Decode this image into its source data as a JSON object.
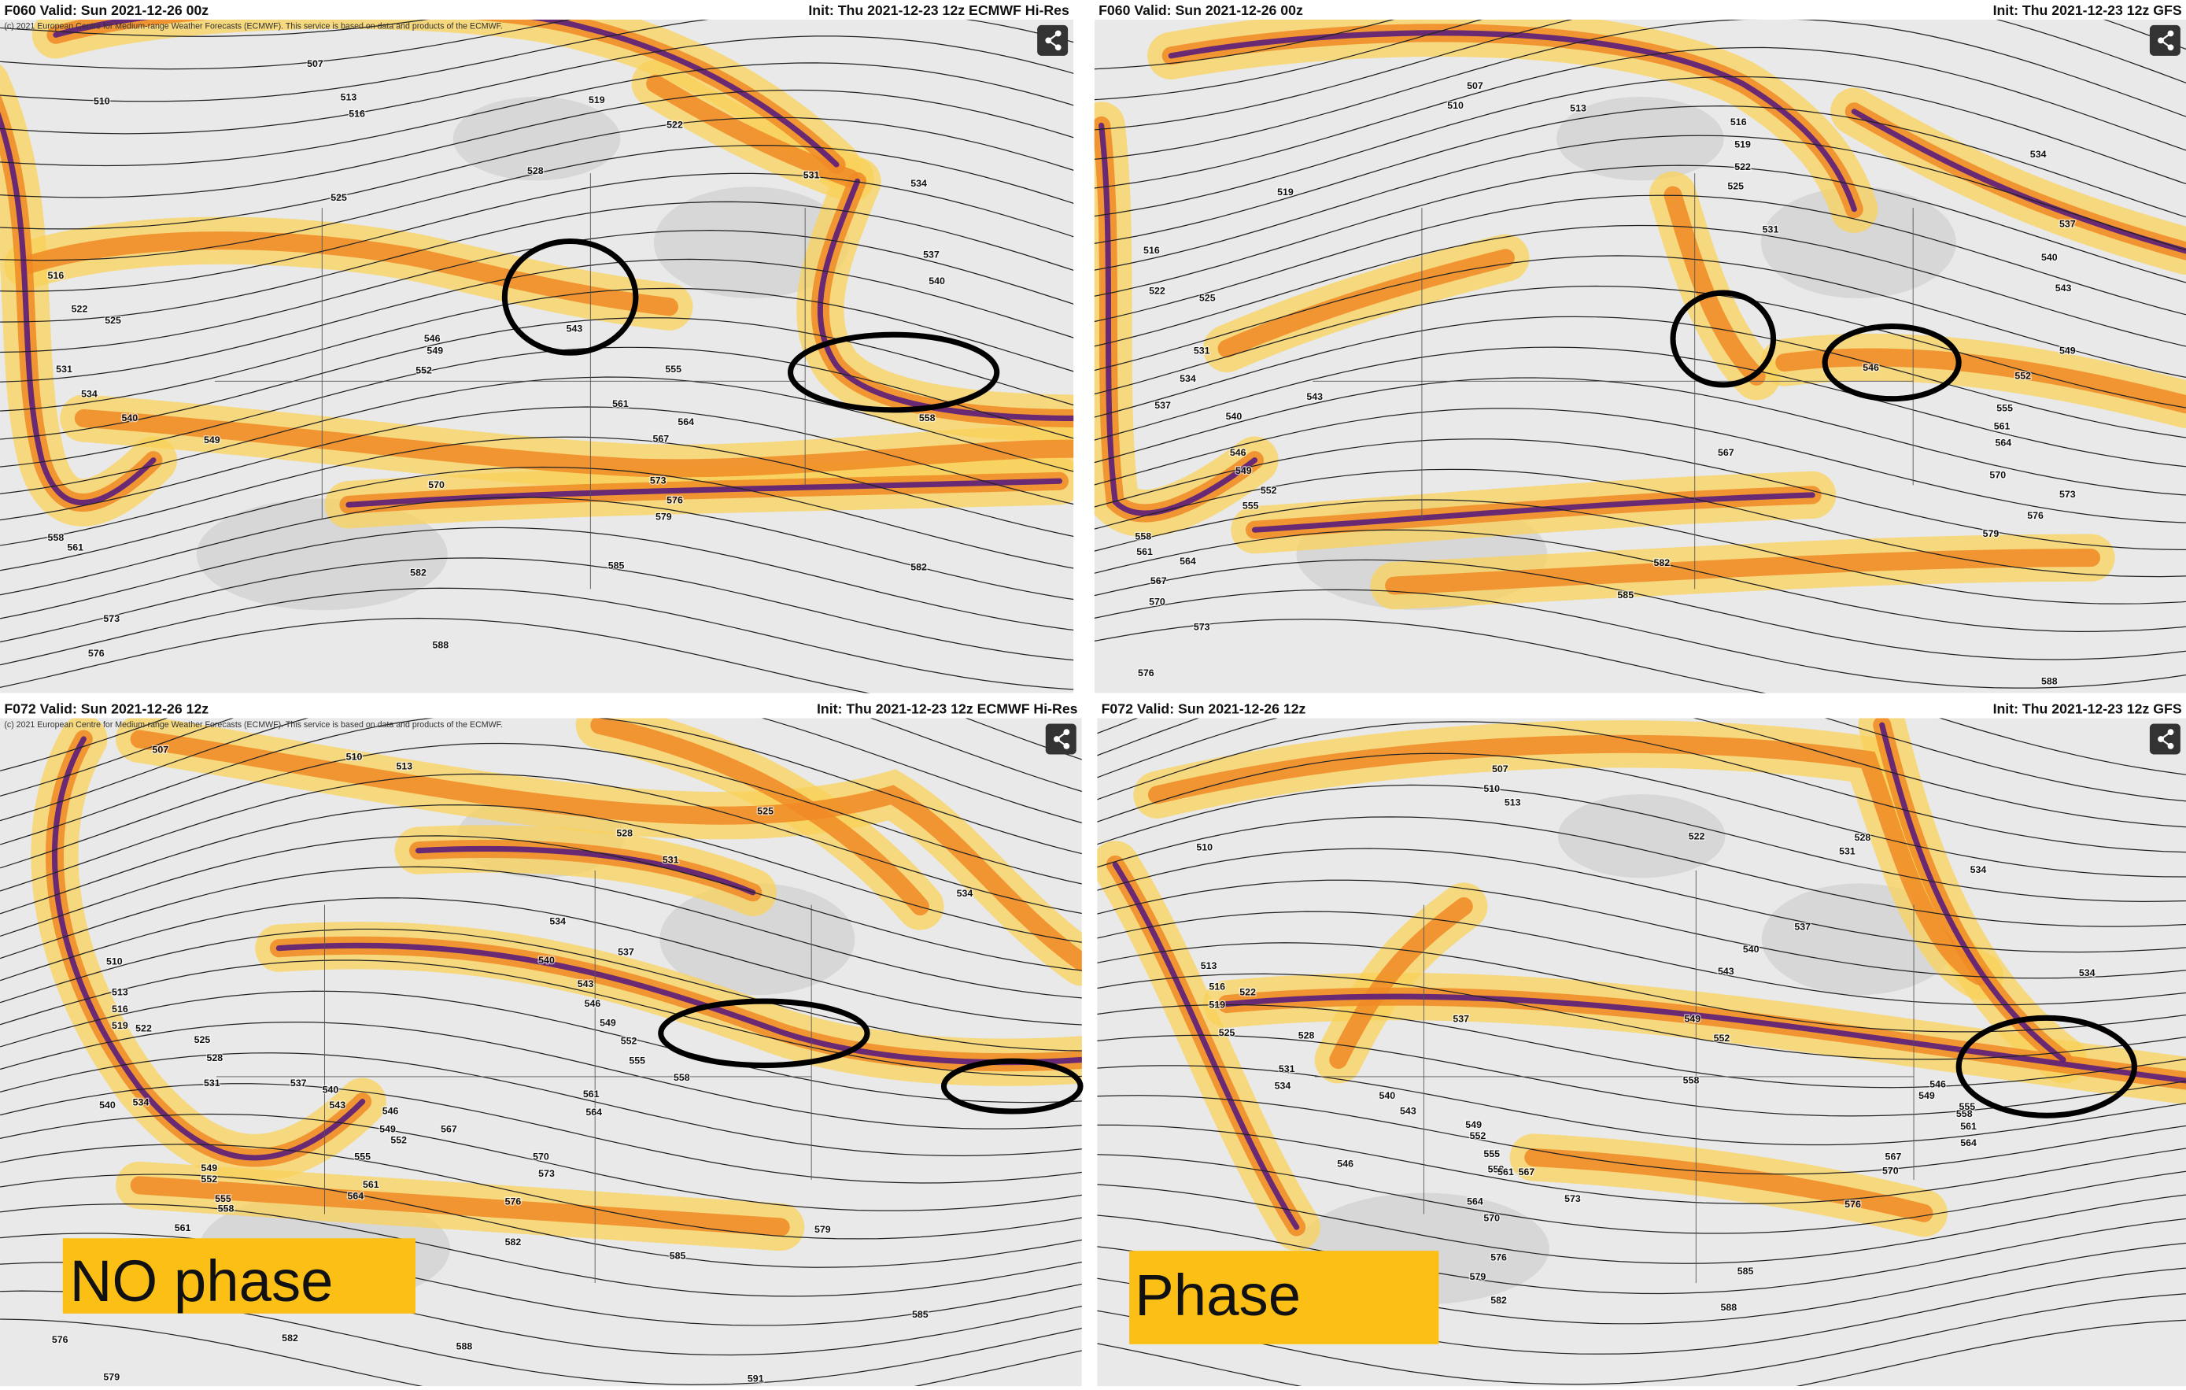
{
  "panels": [
    {
      "valid": "F060 Valid: Sun 2021-12-26 00z",
      "init": "Init: Thu 2021-12-23 12z ECMWF Hi-Res",
      "copyright": "(c) 2021 European Centre for Medium-range Weather Forecasts (ECMWF). This service is based on data and products of the ECMWF.",
      "contour_labels": [
        "507",
        "510",
        "513",
        "516",
        "519",
        "522",
        "528",
        "525",
        "531",
        "534",
        "537",
        "540",
        "543",
        "546",
        "549",
        "552",
        "555",
        "558",
        "561",
        "564",
        "567",
        "570",
        "573",
        "576",
        "579",
        "582",
        "585",
        "588",
        "516",
        "522",
        "525",
        "531",
        "534",
        "540",
        "549",
        "558",
        "561",
        "573",
        "576",
        "582"
      ]
    },
    {
      "valid": "F060 Valid: Sun 2021-12-26 00z",
      "init": "Init: Thu 2021-12-23 12z GFS",
      "contour_labels": [
        "507",
        "510",
        "513",
        "516",
        "519",
        "522",
        "525",
        "519",
        "531",
        "534",
        "537",
        "540",
        "543",
        "546",
        "549",
        "552",
        "555",
        "561",
        "564",
        "567",
        "570",
        "573",
        "576",
        "579",
        "582",
        "585",
        "588",
        "516",
        "522",
        "525",
        "531",
        "534",
        "537",
        "540",
        "543",
        "546",
        "549",
        "552",
        "555",
        "558",
        "561",
        "564",
        "567",
        "570",
        "573",
        "576"
      ]
    },
    {
      "valid": "F072 Valid: Sun 2021-12-26 12z",
      "init": "Init: Thu 2021-12-23 12z ECMWF Hi-Res",
      "copyright": "(c) 2021 European Centre for Medium-range Weather Forecasts (ECMWF). This service is based on data and products of the ECMWF.",
      "contour_labels": [
        "507",
        "510",
        "513",
        "525",
        "528",
        "531",
        "534",
        "534",
        "537",
        "540",
        "543",
        "546",
        "549",
        "552",
        "555",
        "558",
        "561",
        "564",
        "567",
        "570",
        "573",
        "576",
        "579",
        "582",
        "585",
        "588",
        "591",
        "585",
        "510",
        "513",
        "516",
        "519",
        "522",
        "525",
        "528",
        "531",
        "534",
        "540",
        "549",
        "552",
        "555",
        "558",
        "561",
        "576",
        "579",
        "582",
        "537",
        "540",
        "543",
        "546",
        "549",
        "552",
        "555",
        "561",
        "564"
      ]
    },
    {
      "valid": "F072 Valid: Sun 2021-12-26 12z",
      "init": "Init: Thu 2021-12-23 12z GFS",
      "contour_labels": [
        "507",
        "510",
        "513",
        "510",
        "522",
        "528",
        "534",
        "531",
        "537",
        "540",
        "543",
        "549",
        "552",
        "558",
        "513",
        "516",
        "519",
        "522",
        "525",
        "528",
        "531",
        "534",
        "537",
        "540",
        "543",
        "546",
        "549",
        "552",
        "555",
        "558",
        "561",
        "564",
        "567",
        "570",
        "573",
        "576",
        "579",
        "582",
        "585",
        "588",
        "576",
        "570",
        "567",
        "564",
        "561",
        "558",
        "555",
        "549",
        "546",
        "534"
      ]
    }
  ],
  "annotations": {
    "no_phase": "NO phase",
    "phase": "Phase"
  }
}
